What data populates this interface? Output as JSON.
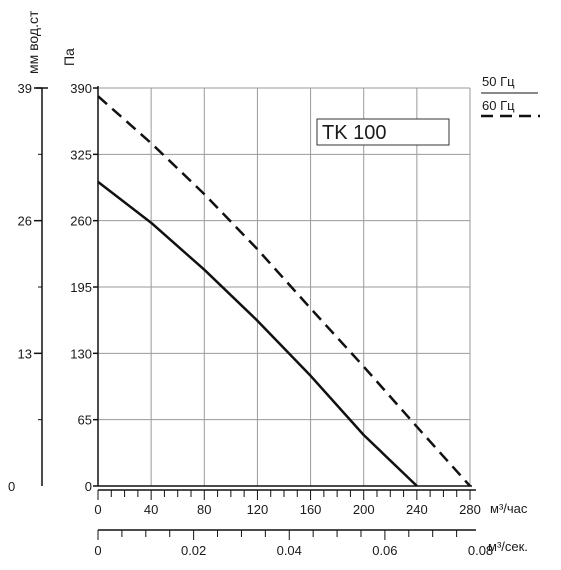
{
  "chart_data": {
    "type": "line",
    "title": "TK 100",
    "x_primary": {
      "label": "м³/час",
      "min": 0,
      "max": 280,
      "ticks": [
        "0",
        "40",
        "80",
        "120",
        "160",
        "200",
        "240",
        "280"
      ]
    },
    "x_secondary": {
      "label": "м³/сек.",
      "min": 0,
      "max": 0.0778,
      "ticks": [
        "0",
        "0.02",
        "0.04",
        "0.06",
        "0.08"
      ],
      "tick_values": [
        0,
        0.02,
        0.04,
        0.06,
        0.08
      ]
    },
    "y_primary": {
      "label": "Па",
      "min": 0,
      "max": 390,
      "ticks": [
        "0",
        "65",
        "130",
        "195",
        "260",
        "325",
        "390"
      ]
    },
    "y_secondary": {
      "label": "мм вод.ст",
      "min": 0,
      "max": 39,
      "ticks": [
        "0",
        "13",
        "26",
        "39"
      ]
    },
    "series": [
      {
        "name": "50 Гц",
        "style": "solid",
        "color": "#111111",
        "points": [
          [
            0,
            298
          ],
          [
            40,
            258
          ],
          [
            80,
            212
          ],
          [
            120,
            162
          ],
          [
            160,
            108
          ],
          [
            200,
            50
          ],
          [
            240,
            0
          ]
        ]
      },
      {
        "name": "60 Гц",
        "style": "dashed",
        "color": "#111111",
        "points": [
          [
            0,
            382
          ],
          [
            40,
            336
          ],
          [
            80,
            286
          ],
          [
            120,
            232
          ],
          [
            160,
            174
          ],
          [
            200,
            117
          ],
          [
            240,
            58
          ],
          [
            280,
            0
          ]
        ]
      }
    ],
    "legend_position": "top-right",
    "grid": true
  }
}
